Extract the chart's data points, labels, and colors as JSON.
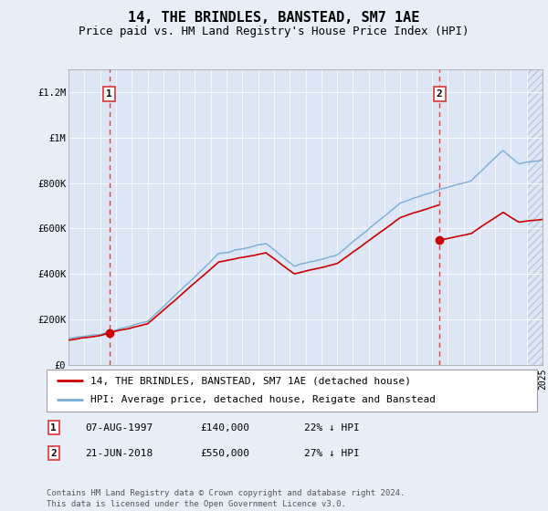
{
  "title": "14, THE BRINDLES, BANSTEAD, SM7 1AE",
  "subtitle": "Price paid vs. HM Land Registry's House Price Index (HPI)",
  "legend_line1": "14, THE BRINDLES, BANSTEAD, SM7 1AE (detached house)",
  "legend_line2": "HPI: Average price, detached house, Reigate and Banstead",
  "annotation1_label": "1",
  "annotation1_date": "07-AUG-1997",
  "annotation1_price": "£140,000",
  "annotation1_hpi": "22% ↓ HPI",
  "annotation2_label": "2",
  "annotation2_date": "21-JUN-2018",
  "annotation2_price": "£550,000",
  "annotation2_hpi": "27% ↓ HPI",
  "footer": "Contains HM Land Registry data © Crown copyright and database right 2024.\nThis data is licensed under the Open Government Licence v3.0.",
  "background_color": "#e8eef8",
  "plot_bg_color": "#dce6f5",
  "red_line_color": "#cc0000",
  "blue_line_color": "#7aadd4",
  "dashed_vline_color": "#dd4444",
  "grid_color": "#ffffff",
  "ylim": [
    0,
    1300000
  ],
  "yticks": [
    0,
    200000,
    400000,
    600000,
    800000,
    1000000,
    1200000
  ],
  "ytick_labels": [
    "£0",
    "£200K",
    "£400K",
    "£600K",
    "£800K",
    "£1M",
    "£1.2M"
  ],
  "x_start_year": 1995,
  "x_end_year": 2025,
  "sale1_year": 1997.58,
  "sale1_price": 140000,
  "sale2_year": 2018.47,
  "sale2_price": 550000,
  "title_fontsize": 11,
  "subtitle_fontsize": 9,
  "axis_fontsize": 7.5,
  "legend_fontsize": 8,
  "footer_fontsize": 6.5
}
